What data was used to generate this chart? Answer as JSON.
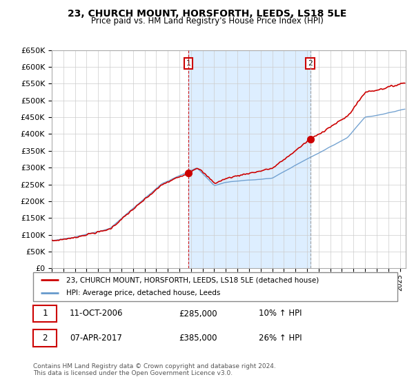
{
  "title": "23, CHURCH MOUNT, HORSFORTH, LEEDS, LS18 5LE",
  "subtitle": "Price paid vs. HM Land Registry's House Price Index (HPI)",
  "legend_line1": "23, CHURCH MOUNT, HORSFORTH, LEEDS, LS18 5LE (detached house)",
  "legend_line2": "HPI: Average price, detached house, Leeds",
  "sale1_date": "11-OCT-2006",
  "sale1_price": "£285,000",
  "sale1_hpi": "10% ↑ HPI",
  "sale2_date": "07-APR-2017",
  "sale2_price": "£385,000",
  "sale2_hpi": "26% ↑ HPI",
  "footer": "Contains HM Land Registry data © Crown copyright and database right 2024.\nThis data is licensed under the Open Government Licence v3.0.",
  "property_color": "#cc0000",
  "hpi_color": "#6699cc",
  "vline1_color": "#cc0000",
  "vline2_color": "#999999",
  "shade_color": "#ddeeff",
  "sale1_x": 2006.78,
  "sale2_x": 2017.27,
  "ylim_min": 0,
  "ylim_max": 650000,
  "xlim_min": 1995.0,
  "xlim_max": 2025.5
}
